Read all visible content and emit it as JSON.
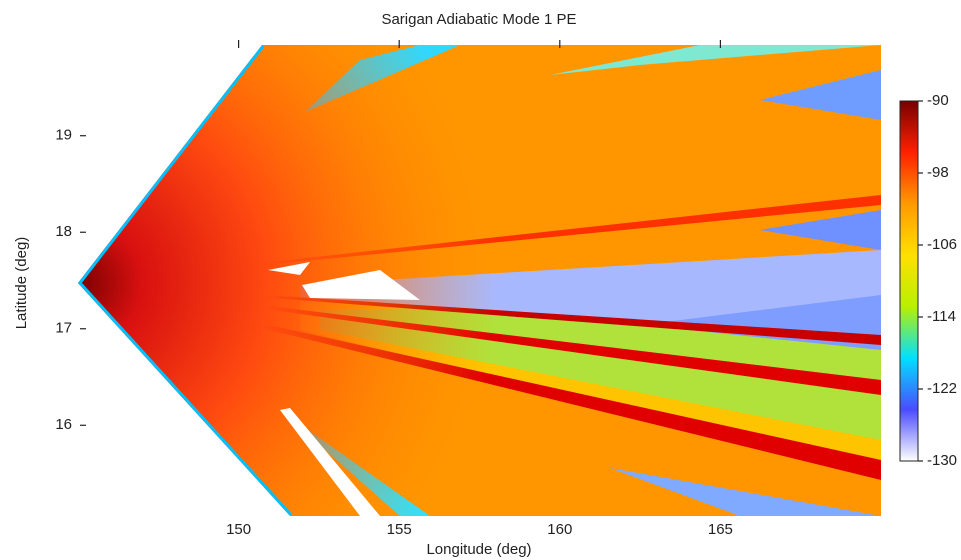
{
  "chart_data": {
    "type": "heatmap",
    "title": "Sarigan Adiabatic Mode 1 PE",
    "x_label": "Longitude (deg)",
    "y_label": "Latitude (deg)",
    "xlim": [
      145,
      170
    ],
    "xticks": [
      150,
      155,
      160,
      165
    ],
    "ylim": [
      15.06,
      19.94
    ],
    "yticks": [
      16,
      17,
      18,
      19
    ],
    "colorbar": {
      "lim": [
        -130,
        -90
      ],
      "ticks": [
        -130,
        -122,
        -114,
        -106,
        -98,
        -90
      ],
      "colors": [
        "#ffffff",
        "#4a4cff",
        "#00e0ff",
        "#b8f000",
        "#ffe000",
        "#ff9a00",
        "#ff2000",
        "#780000"
      ]
    }
  }
}
